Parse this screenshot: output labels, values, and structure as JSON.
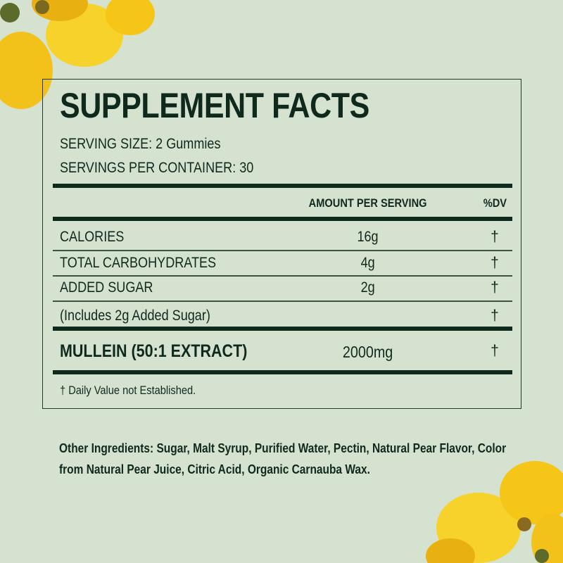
{
  "title": "SUPPLEMENT FACTS",
  "serving_size": "SERVING SIZE: 2 Gummies",
  "servings_per_container": "SERVINGS PER CONTAINER: 30",
  "header": {
    "amount": "AMOUNT PER SERVING",
    "dv": "%DV"
  },
  "rows": [
    {
      "name": "CALORIES",
      "amount": "16g",
      "dv": "†"
    },
    {
      "name": "TOTAL CARBOHYDRATES",
      "amount": "4g",
      "dv": "†"
    },
    {
      "name": "ADDED SUGAR",
      "amount": "2g",
      "dv": "†"
    },
    {
      "name": "(Includes 2g Added Sugar)",
      "amount": "",
      "dv": "†"
    }
  ],
  "main_ingredient": {
    "name": "MULLEIN (50:1 EXTRACT)",
    "amount": "2000mg",
    "dv": "†"
  },
  "footnote": "† Daily Value not Established.",
  "other_ingredients": "Other Ingredients: Sugar, Malt Syrup, Purified Water, Pectin, Natural Pear Flavor, Color from Natural Pear Juice, Citric Acid, Organic Carnauba Wax.",
  "colors": {
    "background": "#d6e2d0",
    "text": "#0f2a1c",
    "flower": "#f5c518"
  }
}
